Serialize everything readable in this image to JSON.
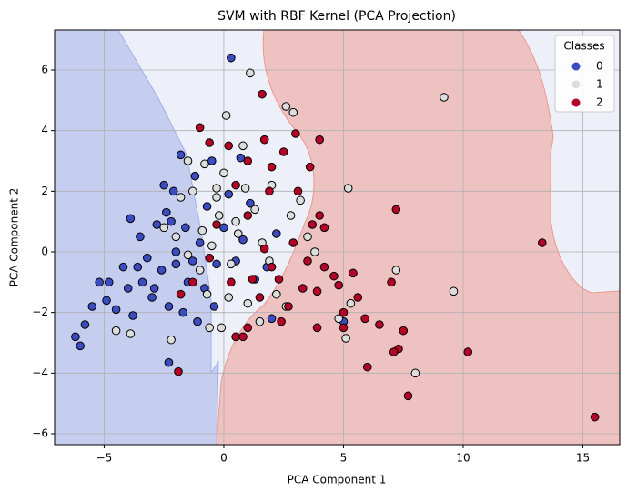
{
  "chart_data": {
    "type": "scatter",
    "title": "SVM with RBF Kernel (PCA Projection)",
    "x_label": "PCA Component 1",
    "y_label": "PCA Component 2",
    "xlim": [
      -7.07,
      16.54
    ],
    "ylim": [
      -6.36,
      7.32
    ],
    "xticks": [
      {
        "value": -5,
        "label": "−5"
      },
      0,
      5,
      10,
      15
    ],
    "yticks": [
      {
        "value": -6,
        "label": "−6"
      },
      {
        "value": -4,
        "label": "−4"
      },
      {
        "value": -2,
        "label": "−2"
      },
      0,
      2,
      4,
      6
    ],
    "grid": true,
    "legend_title": "Classes",
    "legend_position": "upper right",
    "series": [
      {
        "name": "0",
        "color": "#3b4cc0",
        "x": [
          -6.2,
          -6.0,
          -5.8,
          -5.5,
          -5.2,
          -4.9,
          -4.5,
          -4.2,
          -4.0,
          -3.8,
          -3.5,
          -3.4,
          -3.2,
          -3.0,
          -2.8,
          -2.6,
          -2.4,
          -2.3,
          -2.1,
          -2.0,
          -1.8,
          -1.6,
          -1.5,
          -1.2,
          -1.0,
          -0.8,
          -0.7,
          -0.5,
          -0.3,
          0.0,
          0.3,
          0.2,
          0.5,
          0.8,
          1.1,
          1.3,
          1.8,
          2.2,
          2.0,
          5.0,
          -2.3,
          -3.9,
          -2.5,
          -2.2,
          -4.8,
          -3.6,
          -2.9,
          -1.7,
          -1.1,
          -0.4,
          0.7,
          -2.0,
          -1.3
        ],
        "values": [
          -2.8,
          -3.1,
          -2.4,
          -1.8,
          -1.0,
          -1.6,
          -1.9,
          -0.5,
          -1.2,
          -2.1,
          0.5,
          -1.0,
          -0.2,
          -1.5,
          0.9,
          -0.6,
          1.3,
          -1.8,
          2.0,
          -0.4,
          3.2,
          0.8,
          -1.0,
          2.5,
          0.3,
          -1.2,
          1.5,
          3.0,
          -0.4,
          0.8,
          6.4,
          1.9,
          -0.3,
          0.4,
          1.6,
          -0.9,
          -0.5,
          0.6,
          -2.2,
          -2.3,
          -3.65,
          1.1,
          2.2,
          1.0,
          -1.0,
          -0.5,
          -1.2,
          -2.0,
          -2.3,
          -1.8,
          3.1,
          0.0,
          -0.3
        ]
      },
      {
        "name": "1",
        "color": "#dddddd",
        "x": [
          9.2,
          9.6,
          8.0,
          7.2,
          5.2,
          5.1,
          5.3,
          4.8,
          3.8,
          3.2,
          2.6,
          2.9,
          1.1,
          0.1,
          0.8,
          -0.9,
          -0.3,
          0.0,
          -1.3,
          -1.8,
          -0.5,
          -0.7,
          -0.1,
          -0.6,
          -1.5,
          -2.0,
          -2.2,
          -3.9,
          -4.5,
          1.5,
          2.6,
          2.2,
          1.6,
          1.3,
          0.6,
          0.3,
          -0.2,
          -1.0,
          -2.5,
          -0.3,
          0.9,
          2.0,
          3.5,
          2.8,
          1.9,
          -1.5,
          -0.8,
          0.5,
          0.2,
          1.0
        ],
        "values": [
          5.1,
          -1.3,
          -4.0,
          -0.6,
          2.1,
          -2.85,
          -1.7,
          -2.2,
          0.0,
          1.7,
          4.8,
          4.6,
          5.9,
          4.5,
          3.5,
          0.7,
          1.8,
          2.6,
          2.0,
          1.8,
          0.2,
          -1.4,
          -2.5,
          -2.5,
          -0.1,
          0.5,
          -2.9,
          -2.7,
          -2.6,
          -2.3,
          -1.8,
          -1.4,
          0.3,
          1.4,
          0.6,
          -0.4,
          1.2,
          -0.6,
          0.8,
          2.1,
          2.1,
          2.2,
          0.5,
          1.2,
          -0.3,
          3.0,
          2.9,
          1.0,
          -1.5,
          -1.7
        ]
      },
      {
        "name": "2",
        "color": "#b40426",
        "x": [
          15.5,
          13.3,
          10.2,
          7.7,
          7.3,
          7.1,
          7.5,
          6.0,
          6.5,
          5.9,
          5.6,
          4.8,
          4.0,
          5.0,
          3.9,
          4.6,
          4.2,
          3.5,
          3.7,
          4.0,
          3.9,
          2.3,
          1.7,
          2.4,
          2.5,
          3.0,
          1.6,
          1.7,
          2.0,
          1.9,
          1.0,
          1.2,
          0.5,
          0.8,
          -1.9,
          -1.8,
          -1.3,
          -0.6,
          -0.3,
          0.5,
          1.0,
          0.2,
          -0.6,
          -1.0,
          7.2,
          7.0,
          5.4,
          4.2,
          3.6,
          3.1,
          2.9,
          2.0,
          1.5,
          1.0,
          0.3,
          2.7,
          3.3,
          5.0
        ],
        "values": [
          -5.45,
          0.3,
          -3.3,
          -4.75,
          -3.2,
          -3.3,
          -2.6,
          -3.8,
          -2.4,
          -2.2,
          -1.5,
          -1.1,
          3.7,
          -2.5,
          -2.5,
          -0.8,
          -0.5,
          -0.3,
          0.9,
          1.2,
          -1.3,
          -0.9,
          0.1,
          -2.3,
          3.3,
          3.9,
          5.2,
          3.7,
          2.8,
          2.0,
          1.2,
          -0.9,
          -2.8,
          -2.8,
          -3.95,
          -1.4,
          -1.0,
          -0.2,
          0.9,
          2.2,
          3.0,
          3.5,
          3.6,
          4.1,
          1.4,
          -1.0,
          -0.7,
          0.8,
          2.8,
          2.0,
          0.3,
          -0.5,
          -1.5,
          -2.5,
          -1.0,
          -1.8,
          -1.2,
          -2.0
        ]
      }
    ]
  }
}
